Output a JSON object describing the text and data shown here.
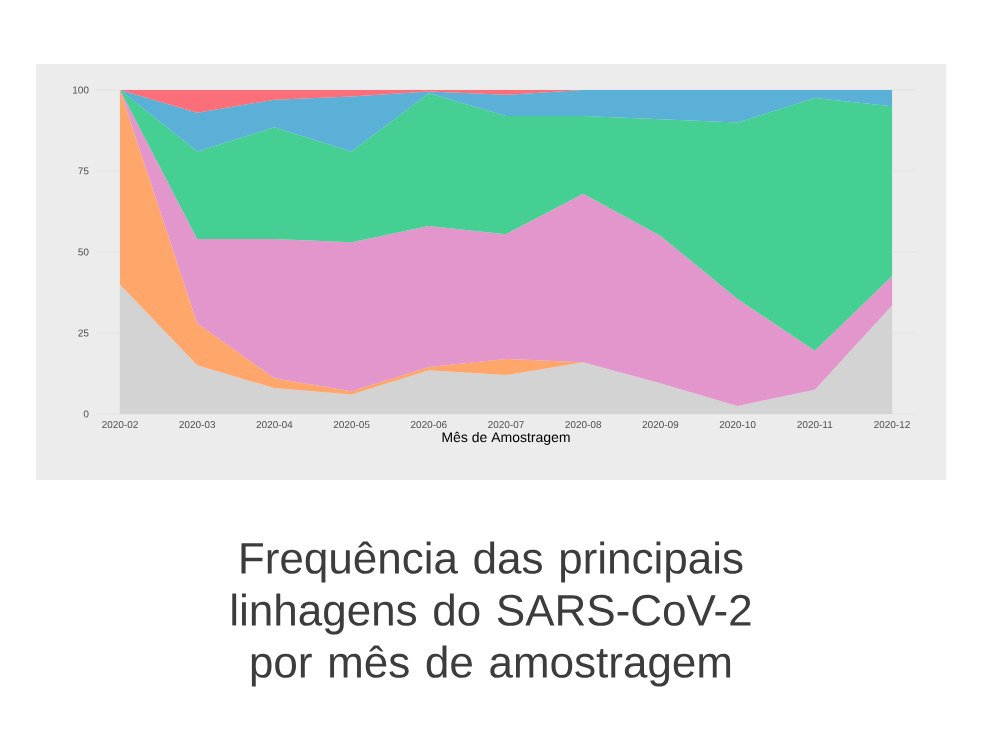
{
  "chart_data": {
    "type": "area",
    "stacked": true,
    "title": "Frequência das principais linhagens do SARS-CoV-2 por mês de amostragem",
    "xlabel": "Mês de Amostragem",
    "categories": [
      "2020-02",
      "2020-03",
      "2020-04",
      "2020-05",
      "2020-06",
      "2020-07",
      "2020-08",
      "2020-09",
      "2020-10",
      "2020-11",
      "2020-12"
    ],
    "series": [
      {
        "color": "#d3d3d3",
        "values": [
          40,
          15,
          8,
          6,
          13.5,
          12,
          16,
          9.5,
          2.5,
          7.5,
          33.5
        ]
      },
      {
        "color": "#ffa66b",
        "values": [
          60,
          13,
          3,
          1,
          1,
          5,
          0,
          null,
          null,
          null,
          null
        ]
      },
      {
        "color": "#e396cc",
        "values": [
          0,
          26,
          43,
          46,
          43.5,
          38.5,
          52,
          45.5,
          33,
          12,
          9
        ]
      },
      {
        "color": "#45cf92",
        "values": [
          0,
          27,
          34.5,
          28,
          41,
          36.5,
          24,
          36,
          54.5,
          78,
          52.5
        ]
      },
      {
        "color": "#5ab0d6",
        "values": [
          0,
          12,
          8.5,
          17,
          0.5,
          6.5,
          8,
          9,
          10,
          2.5,
          5
        ]
      },
      {
        "color": "#fb6f7b",
        "values": [
          0,
          7,
          3,
          2,
          0.5,
          1.5,
          0,
          null,
          null,
          null,
          null
        ]
      }
    ],
    "ylim": [
      0,
      100
    ],
    "yticks": [
      0,
      25,
      50,
      75,
      100
    ],
    "grid": true
  }
}
